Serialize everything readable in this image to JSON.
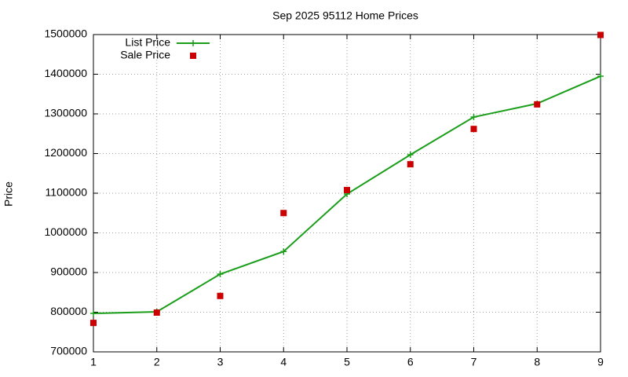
{
  "chart_data": {
    "type": "line",
    "title": "Sep 2025 95112 Home Prices",
    "y_label": "Price",
    "x": [
      1,
      2,
      3,
      4,
      5,
      6,
      7,
      8,
      9
    ],
    "xlim": [
      1,
      9
    ],
    "xticks": [
      1,
      2,
      3,
      4,
      5,
      6,
      7,
      8,
      9
    ],
    "ylim": [
      700000,
      1500000
    ],
    "yticks": [
      700000,
      800000,
      900000,
      1000000,
      1100000,
      1200000,
      1300000,
      1400000,
      1500000
    ],
    "grid": true,
    "legend": "top-left",
    "series": [
      {
        "name": "List Price",
        "type": "line",
        "color": "#1a9e1a",
        "values": [
          797000,
          801000,
          896000,
          953000,
          1098000,
          1197000,
          1292000,
          1326000,
          1395000
        ]
      },
      {
        "name": "Sale Price",
        "type": "scatter",
        "color": "#cc0000",
        "values": [
          773000,
          799000,
          841000,
          1050000,
          1108000,
          1173000,
          1262000,
          1324000,
          1499000
        ]
      }
    ]
  }
}
